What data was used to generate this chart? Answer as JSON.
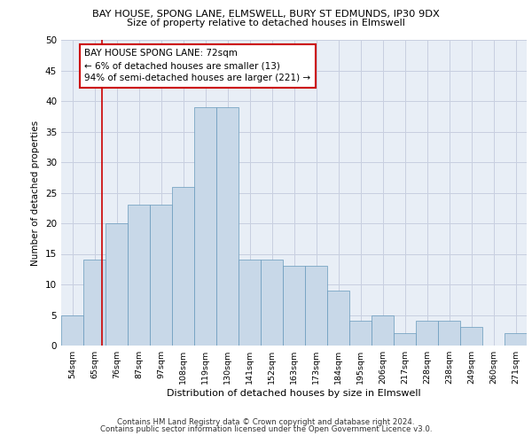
{
  "title": "BAY HOUSE, SPONG LANE, ELMSWELL, BURY ST EDMUNDS, IP30 9DX",
  "subtitle": "Size of property relative to detached houses in Elmswell",
  "xlabel": "Distribution of detached houses by size in Elmswell",
  "ylabel": "Number of detached properties",
  "bin_labels": [
    "54sqm",
    "65sqm",
    "76sqm",
    "87sqm",
    "97sqm",
    "108sqm",
    "119sqm",
    "130sqm",
    "141sqm",
    "152sqm",
    "163sqm",
    "173sqm",
    "184sqm",
    "195sqm",
    "206sqm",
    "217sqm",
    "228sqm",
    "238sqm",
    "249sqm",
    "260sqm",
    "271sqm"
  ],
  "bar_heights": [
    5,
    14,
    20,
    23,
    23,
    26,
    39,
    39,
    14,
    14,
    13,
    13,
    9,
    4,
    5,
    2,
    4,
    4,
    3,
    0,
    2
  ],
  "bar_color": "#c8d8e8",
  "bar_edge_color": "#6699bb",
  "grid_color": "#c8cfe0",
  "bg_color": "#e8eef6",
  "vline_x": 1.35,
  "vline_color": "#cc0000",
  "annotation_text": "BAY HOUSE SPONG LANE: 72sqm\n← 6% of detached houses are smaller (13)\n94% of semi-detached houses are larger (221) →",
  "annotation_box_color": "#ffffff",
  "annotation_box_edge": "#cc0000",
  "ylim": [
    0,
    50
  ],
  "yticks": [
    0,
    5,
    10,
    15,
    20,
    25,
    30,
    35,
    40,
    45,
    50
  ],
  "footer_line1": "Contains HM Land Registry data © Crown copyright and database right 2024.",
  "footer_line2": "Contains public sector information licensed under the Open Government Licence v3.0."
}
